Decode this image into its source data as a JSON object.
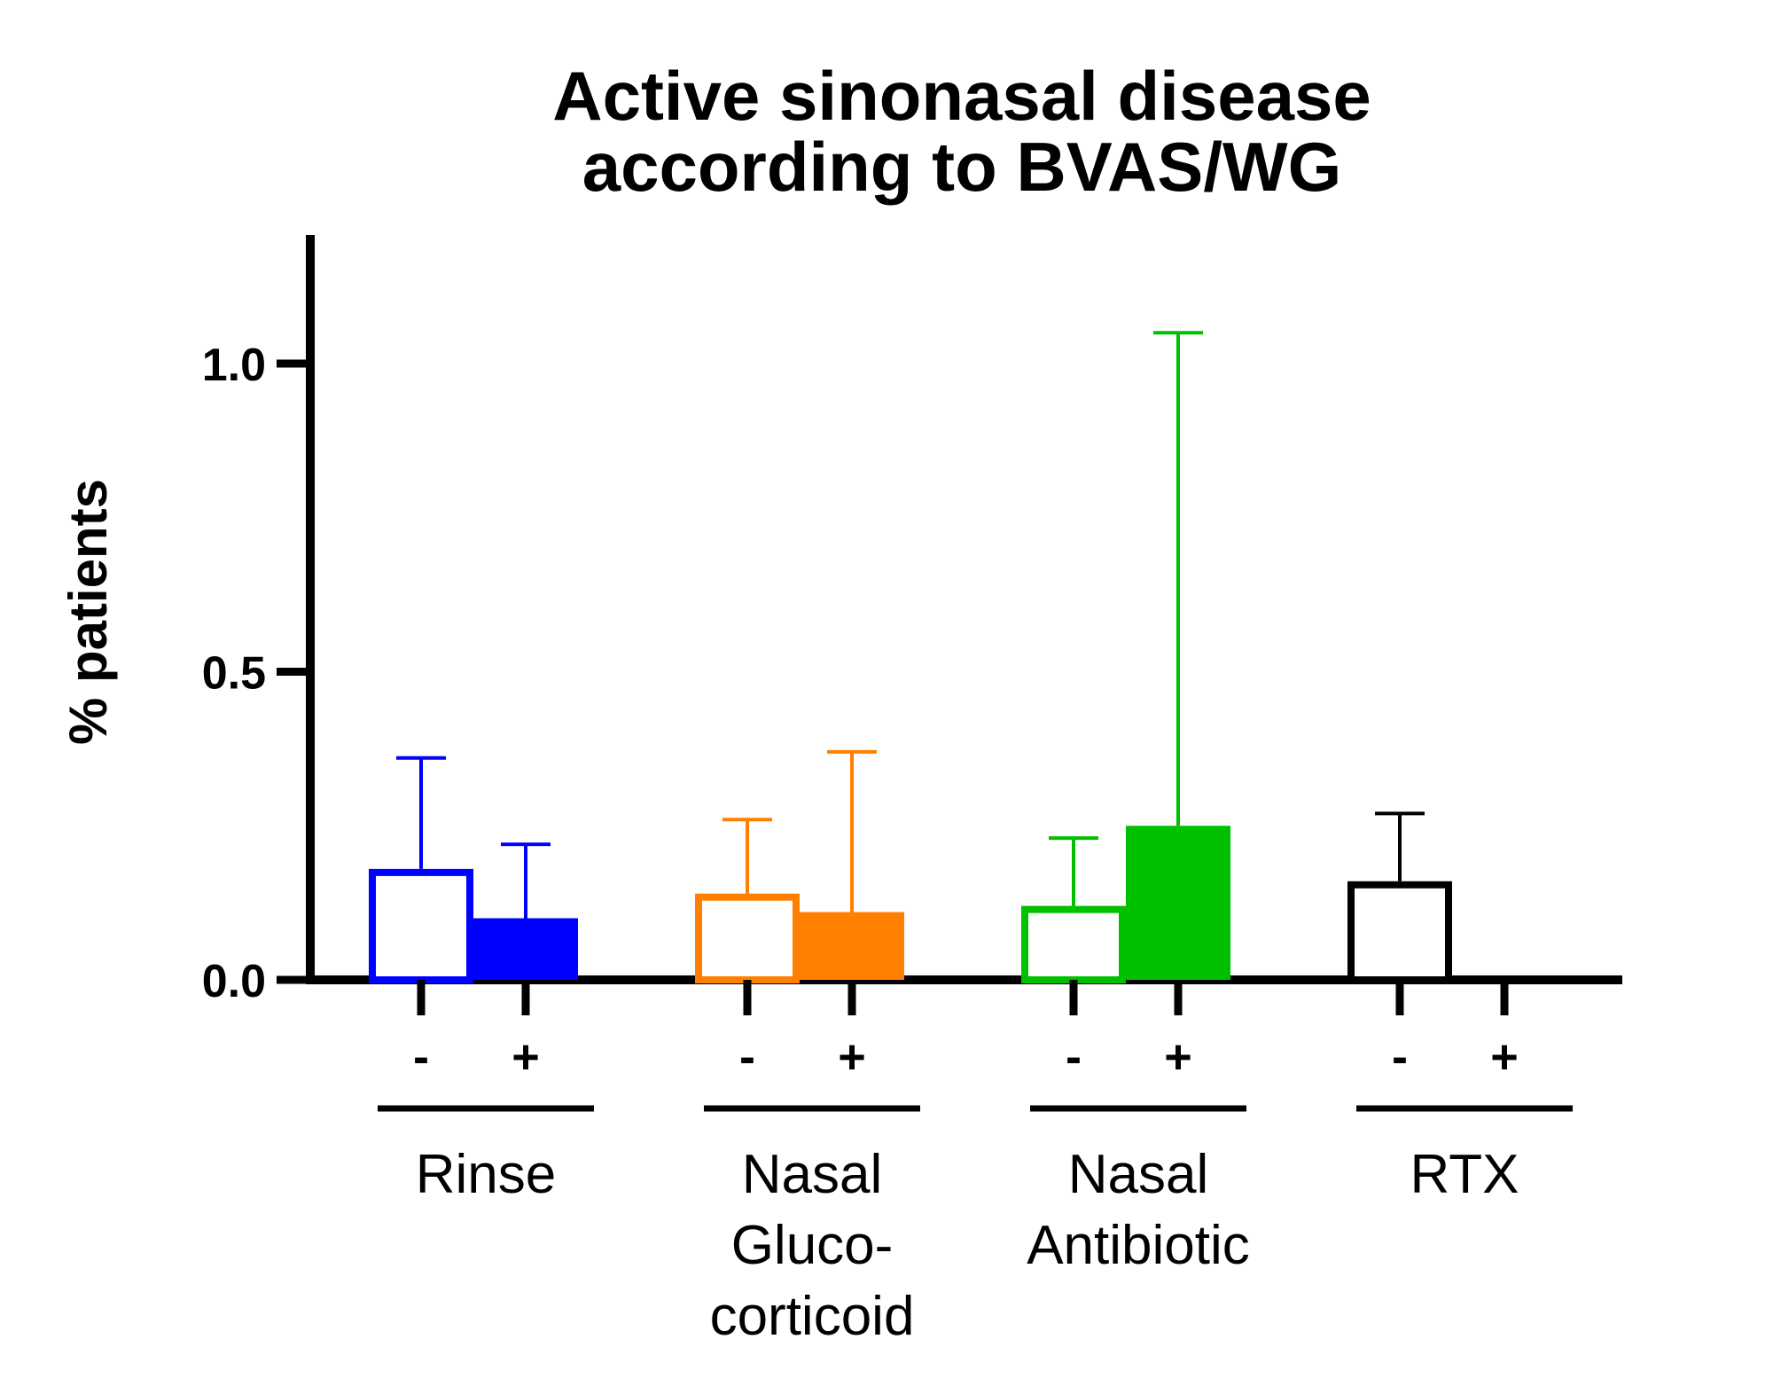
{
  "chart_data": {
    "type": "bar",
    "title_lines": [
      "Active sinonasal disease",
      "according to BVAS/WG"
    ],
    "ylabel": "% patients",
    "xlabel": "",
    "ylim": [
      0,
      1.2
    ],
    "yticks": [
      0.0,
      0.5,
      1.0
    ],
    "ytick_labels": [
      "0.0",
      "0.5",
      "1.0"
    ],
    "grid": false,
    "groups": [
      {
        "label_lines": [
          "Rinse"
        ],
        "color": "#0000ff",
        "bars": [
          {
            "sign": "-",
            "value": 0.18,
            "error": 0.36,
            "filled": false
          },
          {
            "sign": "+",
            "value": 0.1,
            "error": 0.22,
            "filled": true
          }
        ]
      },
      {
        "label_lines": [
          "Nasal",
          "Gluco-",
          "corticoid"
        ],
        "color": "#ff8000",
        "bars": [
          {
            "sign": "-",
            "value": 0.14,
            "error": 0.26,
            "filled": false
          },
          {
            "sign": "+",
            "value": 0.11,
            "error": 0.37,
            "filled": true
          }
        ]
      },
      {
        "label_lines": [
          "Nasal",
          "Antibiotic"
        ],
        "color": "#00c000",
        "bars": [
          {
            "sign": "-",
            "value": 0.12,
            "error": 0.23,
            "filled": false
          },
          {
            "sign": "+",
            "value": 0.25,
            "error": 1.05,
            "filled": true
          }
        ]
      },
      {
        "label_lines": [
          "RTX"
        ],
        "color": "#000000",
        "bars": [
          {
            "sign": "-",
            "value": 0.16,
            "error": 0.27,
            "filled": false
          },
          {
            "sign": "+",
            "value": 0.0,
            "error": null,
            "filled": true
          }
        ]
      }
    ]
  }
}
